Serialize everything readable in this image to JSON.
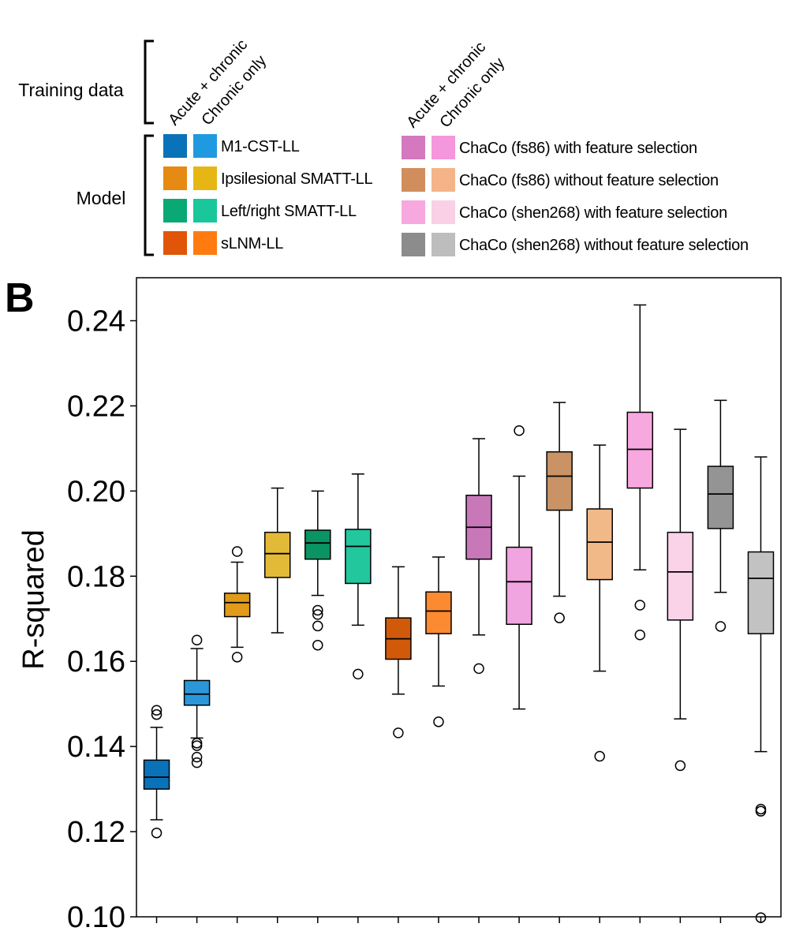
{
  "legend": {
    "training_label": "Training data",
    "model_label": "Model",
    "col_a": "Acute + chronic",
    "col_b": "Chronic only",
    "left_items": [
      {
        "label": "M1-CST-LL",
        "colors": [
          "#0a72b8",
          "#1f9ae0"
        ]
      },
      {
        "label": "Ipsilesional SMATT-LL",
        "colors": [
          "#e68a14",
          "#e6b714"
        ]
      },
      {
        "label": "Left/right SMATT-LL",
        "colors": [
          "#0aa875",
          "#19c79a"
        ]
      },
      {
        "label": "sLNM-LL",
        "colors": [
          "#e05507",
          "#ff7b0f"
        ]
      }
    ],
    "right_items": [
      {
        "label": "ChaCo (fs86) with feature selection",
        "colors": [
          "#d479bf",
          "#f597dc"
        ]
      },
      {
        "label": "ChaCo (fs86) without feature selection",
        "colors": [
          "#d18e5c",
          "#f5b487"
        ]
      },
      {
        "label": "ChaCo (shen268) with feature selection",
        "colors": [
          "#f7a8df",
          "#fad0e6"
        ]
      },
      {
        "label": "ChaCo (shen268) without feature selection",
        "colors": [
          "#8c8c8c",
          "#bdbdbd"
        ]
      }
    ]
  },
  "panel_label": "B",
  "chart_data": {
    "type": "box",
    "ylabel": "R-squared",
    "ylim": [
      0.1,
      0.25
    ],
    "yticks": [
      "0.10",
      "0.12",
      "0.14",
      "0.16",
      "0.18",
      "0.20",
      "0.22",
      "0.24"
    ],
    "ytick_values": [
      0.1,
      0.12,
      0.14,
      0.16,
      0.18,
      0.2,
      0.22,
      0.24
    ],
    "series": [
      {
        "group": "M1-CST-LL",
        "training": "Acute + chronic",
        "color": "#0a72b8",
        "whisker_low": 0.1228,
        "q1": 0.13,
        "median": 0.1328,
        "q3": 0.1368,
        "whisker_high": 0.1445,
        "outliers": [
          0.1475,
          0.1485,
          0.1197
        ]
      },
      {
        "group": "M1-CST-LL",
        "training": "Chronic only",
        "color": "#2b97d9",
        "whisker_low": 0.142,
        "q1": 0.1497,
        "median": 0.1523,
        "q3": 0.1555,
        "whisker_high": 0.163,
        "outliers": [
          0.165,
          0.1402,
          0.1408,
          0.1375,
          0.1362
        ]
      },
      {
        "group": "Ipsilesional SMATT-LL",
        "training": "Acute + chronic",
        "color": "#e09b1a",
        "whisker_low": 0.1633,
        "q1": 0.1705,
        "median": 0.1738,
        "q3": 0.176,
        "whisker_high": 0.1833,
        "outliers": [
          0.1858,
          0.161
        ]
      },
      {
        "group": "Ipsilesional SMATT-LL",
        "training": "Chronic only",
        "color": "#e3ba38",
        "whisker_low": 0.1667,
        "q1": 0.1797,
        "median": 0.1853,
        "q3": 0.1903,
        "whisker_high": 0.2007,
        "outliers": []
      },
      {
        "group": "Left/right SMATT-LL",
        "training": "Acute + chronic",
        "color": "#0a9464",
        "whisker_low": 0.1755,
        "q1": 0.184,
        "median": 0.1878,
        "q3": 0.1908,
        "whisker_high": 0.2,
        "outliers": [
          0.172,
          0.171,
          0.1683,
          0.1638
        ]
      },
      {
        "group": "Left/right SMATT-LL",
        "training": "Chronic only",
        "color": "#22c79e",
        "whisker_low": 0.1685,
        "q1": 0.1783,
        "median": 0.187,
        "q3": 0.191,
        "whisker_high": 0.204,
        "outliers": [
          0.157
        ]
      },
      {
        "group": "sLNM-LL",
        "training": "Acute + chronic",
        "color": "#d15a0a",
        "whisker_low": 0.1523,
        "q1": 0.1605,
        "median": 0.1653,
        "q3": 0.1702,
        "whisker_high": 0.1822,
        "outliers": [
          0.1432
        ]
      },
      {
        "group": "sLNM-LL",
        "training": "Chronic only",
        "color": "#fb8a30",
        "whisker_low": 0.1542,
        "q1": 0.1665,
        "median": 0.1718,
        "q3": 0.1763,
        "whisker_high": 0.1845,
        "outliers": [
          0.1458
        ]
      },
      {
        "group": "ChaCo (fs86) with feature selection",
        "training": "Acute + chronic",
        "color": "#c878b8",
        "whisker_low": 0.1662,
        "q1": 0.184,
        "median": 0.1915,
        "q3": 0.199,
        "whisker_high": 0.2123,
        "outliers": [
          0.1583
        ]
      },
      {
        "group": "ChaCo (fs86) with feature selection",
        "training": "Chronic only",
        "color": "#f0a4e0",
        "whisker_low": 0.1488,
        "q1": 0.1687,
        "median": 0.1787,
        "q3": 0.1868,
        "whisker_high": 0.2035,
        "outliers": [
          0.2142
        ]
      },
      {
        "group": "ChaCo (fs86) without feature selection",
        "training": "Acute + chronic",
        "color": "#c99366",
        "whisker_low": 0.1753,
        "q1": 0.1955,
        "median": 0.2035,
        "q3": 0.2092,
        "whisker_high": 0.2208,
        "outliers": [
          0.1702
        ]
      },
      {
        "group": "ChaCo (fs86) without feature selection",
        "training": "Chronic only",
        "color": "#f2b988",
        "whisker_low": 0.1577,
        "q1": 0.1792,
        "median": 0.188,
        "q3": 0.1958,
        "whisker_high": 0.2108,
        "outliers": [
          0.1377
        ]
      },
      {
        "group": "ChaCo (shen268) with feature selection",
        "training": "Acute + chronic",
        "color": "#f7a8df",
        "whisker_low": 0.1815,
        "q1": 0.2007,
        "median": 0.2098,
        "q3": 0.2185,
        "whisker_high": 0.2437,
        "outliers": [
          0.1732,
          0.1662
        ]
      },
      {
        "group": "ChaCo (shen268) with feature selection",
        "training": "Chronic only",
        "color": "#fad3e8",
        "whisker_low": 0.1465,
        "q1": 0.1697,
        "median": 0.181,
        "q3": 0.1903,
        "whisker_high": 0.2145,
        "outliers": [
          0.1355
        ]
      },
      {
        "group": "ChaCo (shen268) without feature selection",
        "training": "Acute + chronic",
        "color": "#949494",
        "whisker_low": 0.1762,
        "q1": 0.1912,
        "median": 0.1993,
        "q3": 0.2058,
        "whisker_high": 0.2213,
        "outliers": [
          0.1682
        ]
      },
      {
        "group": "ChaCo (shen268) without feature selection",
        "training": "Chronic only",
        "color": "#c2c2c2",
        "whisker_low": 0.1388,
        "q1": 0.1665,
        "median": 0.1795,
        "q3": 0.1857,
        "whisker_high": 0.208,
        "outliers": [
          0.1253,
          0.1248,
          0.0998
        ]
      }
    ],
    "grid": false,
    "legend_position": "top"
  }
}
